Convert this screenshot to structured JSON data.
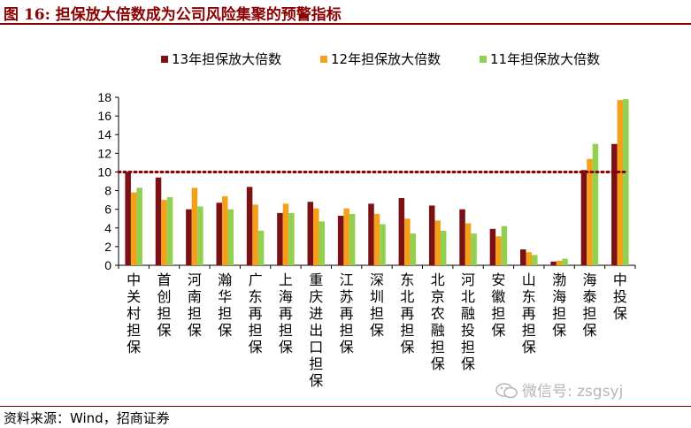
{
  "title": "图 16:  担保放大倍数成为公司风险集聚的预警指标",
  "source": "资料来源：Wind，招商证券",
  "watermark": "微信号: zsgsyj",
  "colors": {
    "brand": "#8b0000",
    "s13": "#7b1113",
    "s12": "#f5a01a",
    "s11": "#92d050",
    "ref_line": "#8b0000"
  },
  "chart_data": {
    "type": "bar",
    "categories": [
      "中关村担保",
      "首创担保",
      "河南担保",
      "瀚华担保",
      "广东再担保",
      "上海再担保",
      "重庆进出口担保",
      "江苏再担保",
      "深圳担保",
      "东北再担保",
      "北京农融担保",
      "河北融投担保",
      "安徽担保",
      "山东再担保",
      "渤海担保",
      "海泰担保",
      "中投保"
    ],
    "series": [
      {
        "name": "13年担保放大倍数",
        "values": [
          10.0,
          9.4,
          6.0,
          6.7,
          8.4,
          5.6,
          6.8,
          5.3,
          6.6,
          7.2,
          6.4,
          6.0,
          3.9,
          1.7,
          0.4,
          10.2,
          13.0
        ]
      },
      {
        "name": "12年担保放大倍数",
        "values": [
          7.8,
          7.0,
          8.3,
          7.4,
          6.5,
          6.6,
          6.1,
          6.1,
          5.5,
          5.0,
          4.8,
          4.5,
          3.1,
          1.4,
          0.5,
          11.4,
          17.7
        ]
      },
      {
        "name": "11年担保放大倍数",
        "values": [
          8.3,
          7.3,
          6.3,
          6.0,
          3.7,
          5.6,
          4.7,
          5.5,
          4.4,
          3.4,
          3.7,
          3.4,
          4.2,
          1.1,
          0.7,
          13.0,
          17.8
        ]
      }
    ],
    "reference_line": 10,
    "ylim": [
      0,
      18
    ],
    "yticks": [
      "0",
      "2",
      "4",
      "6",
      "8",
      "10",
      "12",
      "14",
      "16",
      "18"
    ],
    "legend_position": "top",
    "grid": false
  }
}
